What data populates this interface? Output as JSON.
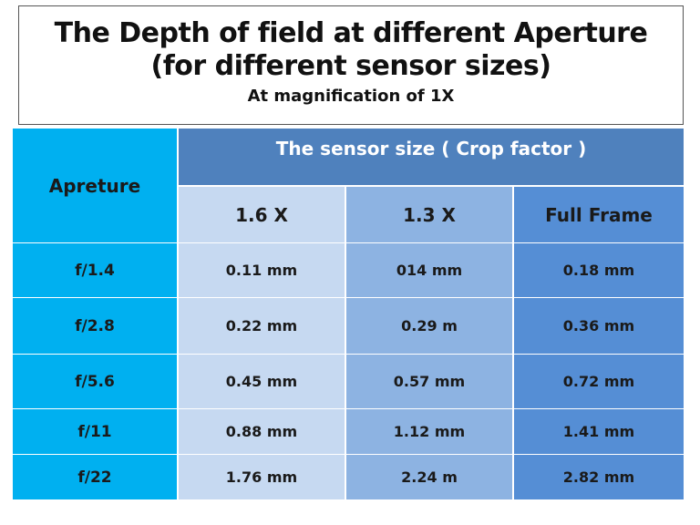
{
  "title": {
    "line1": "The Depth of field at different Aperture",
    "line2": "(for different sensor sizes)",
    "subtitle": "At magnification of 1X"
  },
  "table": {
    "aperture_header": "Apreture",
    "sensor_header": "The sensor size ( Crop factor )",
    "columns": [
      "1.6 X",
      "1.3 X",
      "Full Frame"
    ],
    "rows": [
      {
        "aperture": "f/1.4",
        "values": [
          "0.11 mm",
          "014 mm",
          "0.18 mm"
        ]
      },
      {
        "aperture": "f/2.8",
        "values": [
          "0.22 mm",
          "0.29 m",
          "0.36 mm"
        ]
      },
      {
        "aperture": "f/5.6",
        "values": [
          "0.45 mm",
          "0.57 mm",
          "0.72 mm"
        ]
      },
      {
        "aperture": "f/11",
        "values": [
          "0.88 mm",
          "1.12 mm",
          "1.41 mm"
        ]
      },
      {
        "aperture": "f/22",
        "values": [
          "1.76 mm",
          "2.24 m",
          "2.82 mm"
        ]
      }
    ]
  },
  "colors": {
    "aperture_column": "#00b0f0",
    "sensor_header": "#4f81bd",
    "column_1": "#c6d9f1",
    "column_2": "#8db3e2",
    "column_3": "#558ed5"
  }
}
